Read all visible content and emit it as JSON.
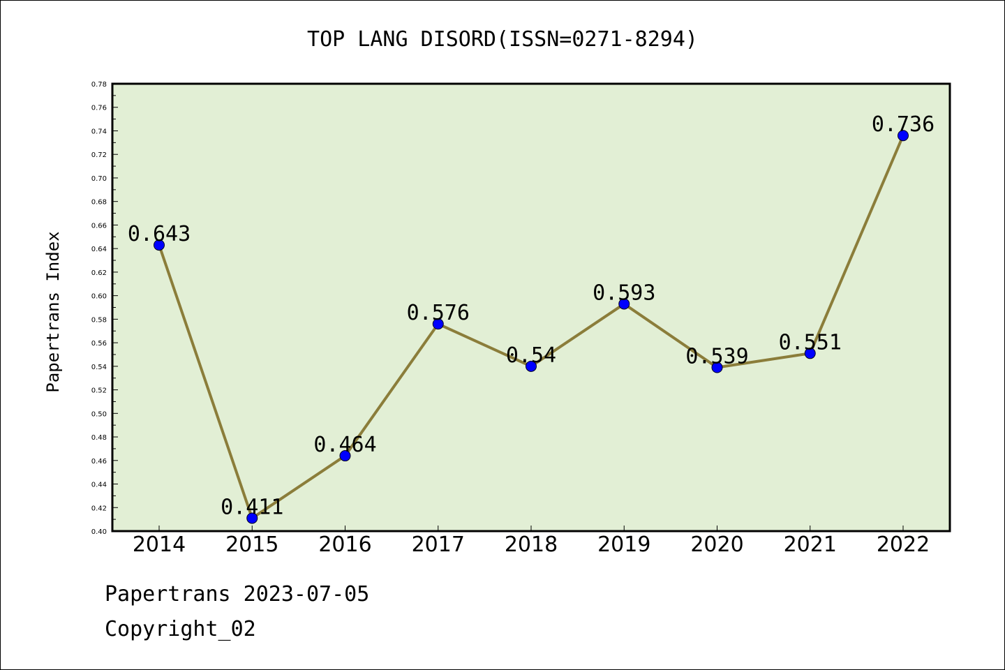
{
  "chart_data": {
    "type": "line",
    "title": "TOP LANG DISORD(ISSN=0271-8294)",
    "xlabel": "",
    "ylabel": "Papertrans Index",
    "categories": [
      "2014",
      "2015",
      "2016",
      "2017",
      "2018",
      "2019",
      "2020",
      "2021",
      "2022"
    ],
    "values": [
      0.643,
      0.411,
      0.464,
      0.576,
      0.54,
      0.593,
      0.539,
      0.551,
      0.736
    ],
    "value_labels": [
      "0.643",
      "0.411",
      "0.464",
      "0.576",
      "0.54",
      "0.593",
      "0.539",
      "0.551",
      "0.736"
    ],
    "ylim": [
      0.4,
      0.78
    ],
    "y_ticks": [
      "0.40",
      "0.42",
      "0.44",
      "0.46",
      "0.48",
      "0.50",
      "0.52",
      "0.54",
      "0.56",
      "0.58",
      "0.60",
      "0.62",
      "0.64",
      "0.66",
      "0.68",
      "0.70",
      "0.72",
      "0.74",
      "0.76",
      "0.78"
    ],
    "grid": false,
    "legend": "none",
    "colors": {
      "plot_background": "#e2efd5",
      "line": "#8b7d3a",
      "marker": "#0000ff"
    }
  },
  "footer": {
    "line1": "Papertrans 2023-07-05",
    "line2": "Copyright_02"
  }
}
